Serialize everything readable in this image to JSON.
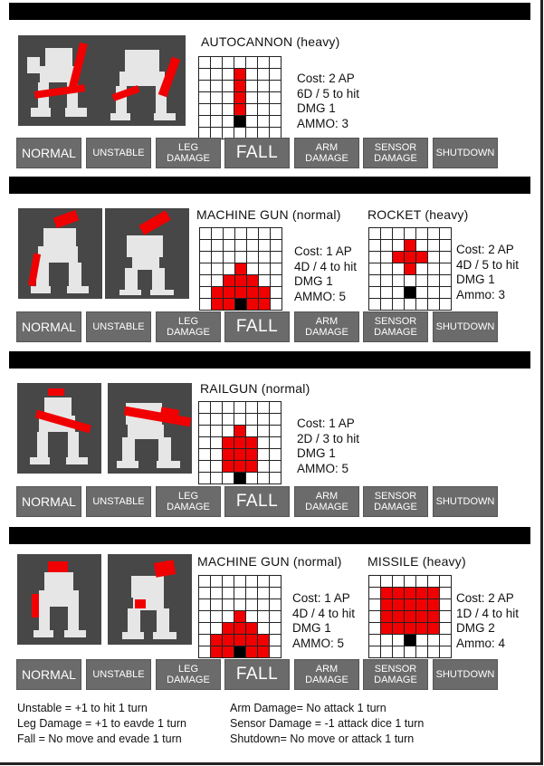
{
  "buttons": {
    "normal": "NORMAL",
    "unstable": "UNSTABLE",
    "leg_1": "LEG",
    "leg_2": "DAMAGE",
    "fall": "FALL",
    "arm_1": "ARM",
    "arm_2": "DAMAGE",
    "sensor_1": "SENSOR",
    "sensor_2": "DAMAGE",
    "shutdown": "SHUTDOWN"
  },
  "colors": {
    "bar": "#000000",
    "button": "#6b6b6b",
    "weapon_red": "#f00000",
    "photo_bg": "#474747"
  },
  "sections": [
    {
      "weapons": [
        {
          "name": "AUTOCANNON (heavy)",
          "cost": "Cost: 2 AP",
          "hit": "6D / 5 to hit",
          "dmg": "DMG 1",
          "ammo": "AMMO: 3",
          "grid": [
            ".......",
            "...r...",
            "...r...",
            "...r...",
            "...r...",
            "...b...",
            "......."
          ]
        }
      ]
    },
    {
      "weapons": [
        {
          "name": "MACHINE GUN (normal)",
          "cost": "Cost: 1 AP",
          "hit": "4D / 4 to hit",
          "dmg": "DMG 1",
          "ammo": "AMMO: 5",
          "grid": [
            ".......",
            ".......",
            ".......",
            "...r...",
            "..rrr..",
            ".rrrrr.",
            ".rrbrr."
          ]
        },
        {
          "name": "ROCKET (heavy)",
          "cost": "Cost: 2 AP",
          "hit": "4D / 5 to hit",
          "dmg": "DMG 1",
          "ammo": "Ammo: 3",
          "grid": [
            ".......",
            "...r...",
            "..rrr..",
            "...r...",
            ".......",
            "...b...",
            "......."
          ]
        }
      ]
    },
    {
      "weapons": [
        {
          "name": "RAILGUN (normal)",
          "cost": "Cost: 1 AP",
          "hit": "2D / 3 to hit",
          "dmg": "DMG 1",
          "ammo": "AMMO: 5",
          "grid": [
            ".......",
            ".......",
            "...r...",
            "..rrr..",
            "..rrr..",
            "..rrr..",
            "...b..."
          ]
        }
      ]
    },
    {
      "weapons": [
        {
          "name": "MACHINE GUN (normal)",
          "cost": "Cost: 1 AP",
          "hit": "4D / 4 to hit",
          "dmg": "DMG 1",
          "ammo": "AMMO: 5",
          "grid": [
            ".......",
            ".......",
            ".......",
            "...r...",
            "..rrr..",
            ".rrrrr.",
            ".rrbrr."
          ]
        },
        {
          "name": "MISSILE (heavy)",
          "cost": "Cost: 2 AP",
          "hit": "1D / 4 to hit",
          "dmg": "DMG 2",
          "ammo": "Ammo: 4",
          "grid": [
            ".......",
            ".rrrrr.",
            ".rrrrr.",
            ".rrrrr.",
            ".rrrrr.",
            "...b...",
            "......."
          ]
        }
      ]
    }
  ],
  "legend": {
    "left": [
      "Unstable  = +1 to hit 1 turn",
      "Leg Damage = +1 to eavde 1 turn",
      "Fall = No move and evade 1 turn"
    ],
    "right": [
      "Arm Damage= No attack 1 turn",
      "Sensor Damage = -1 attack dice 1 turn",
      "Shutdown= No move or attack 1 turn"
    ]
  }
}
